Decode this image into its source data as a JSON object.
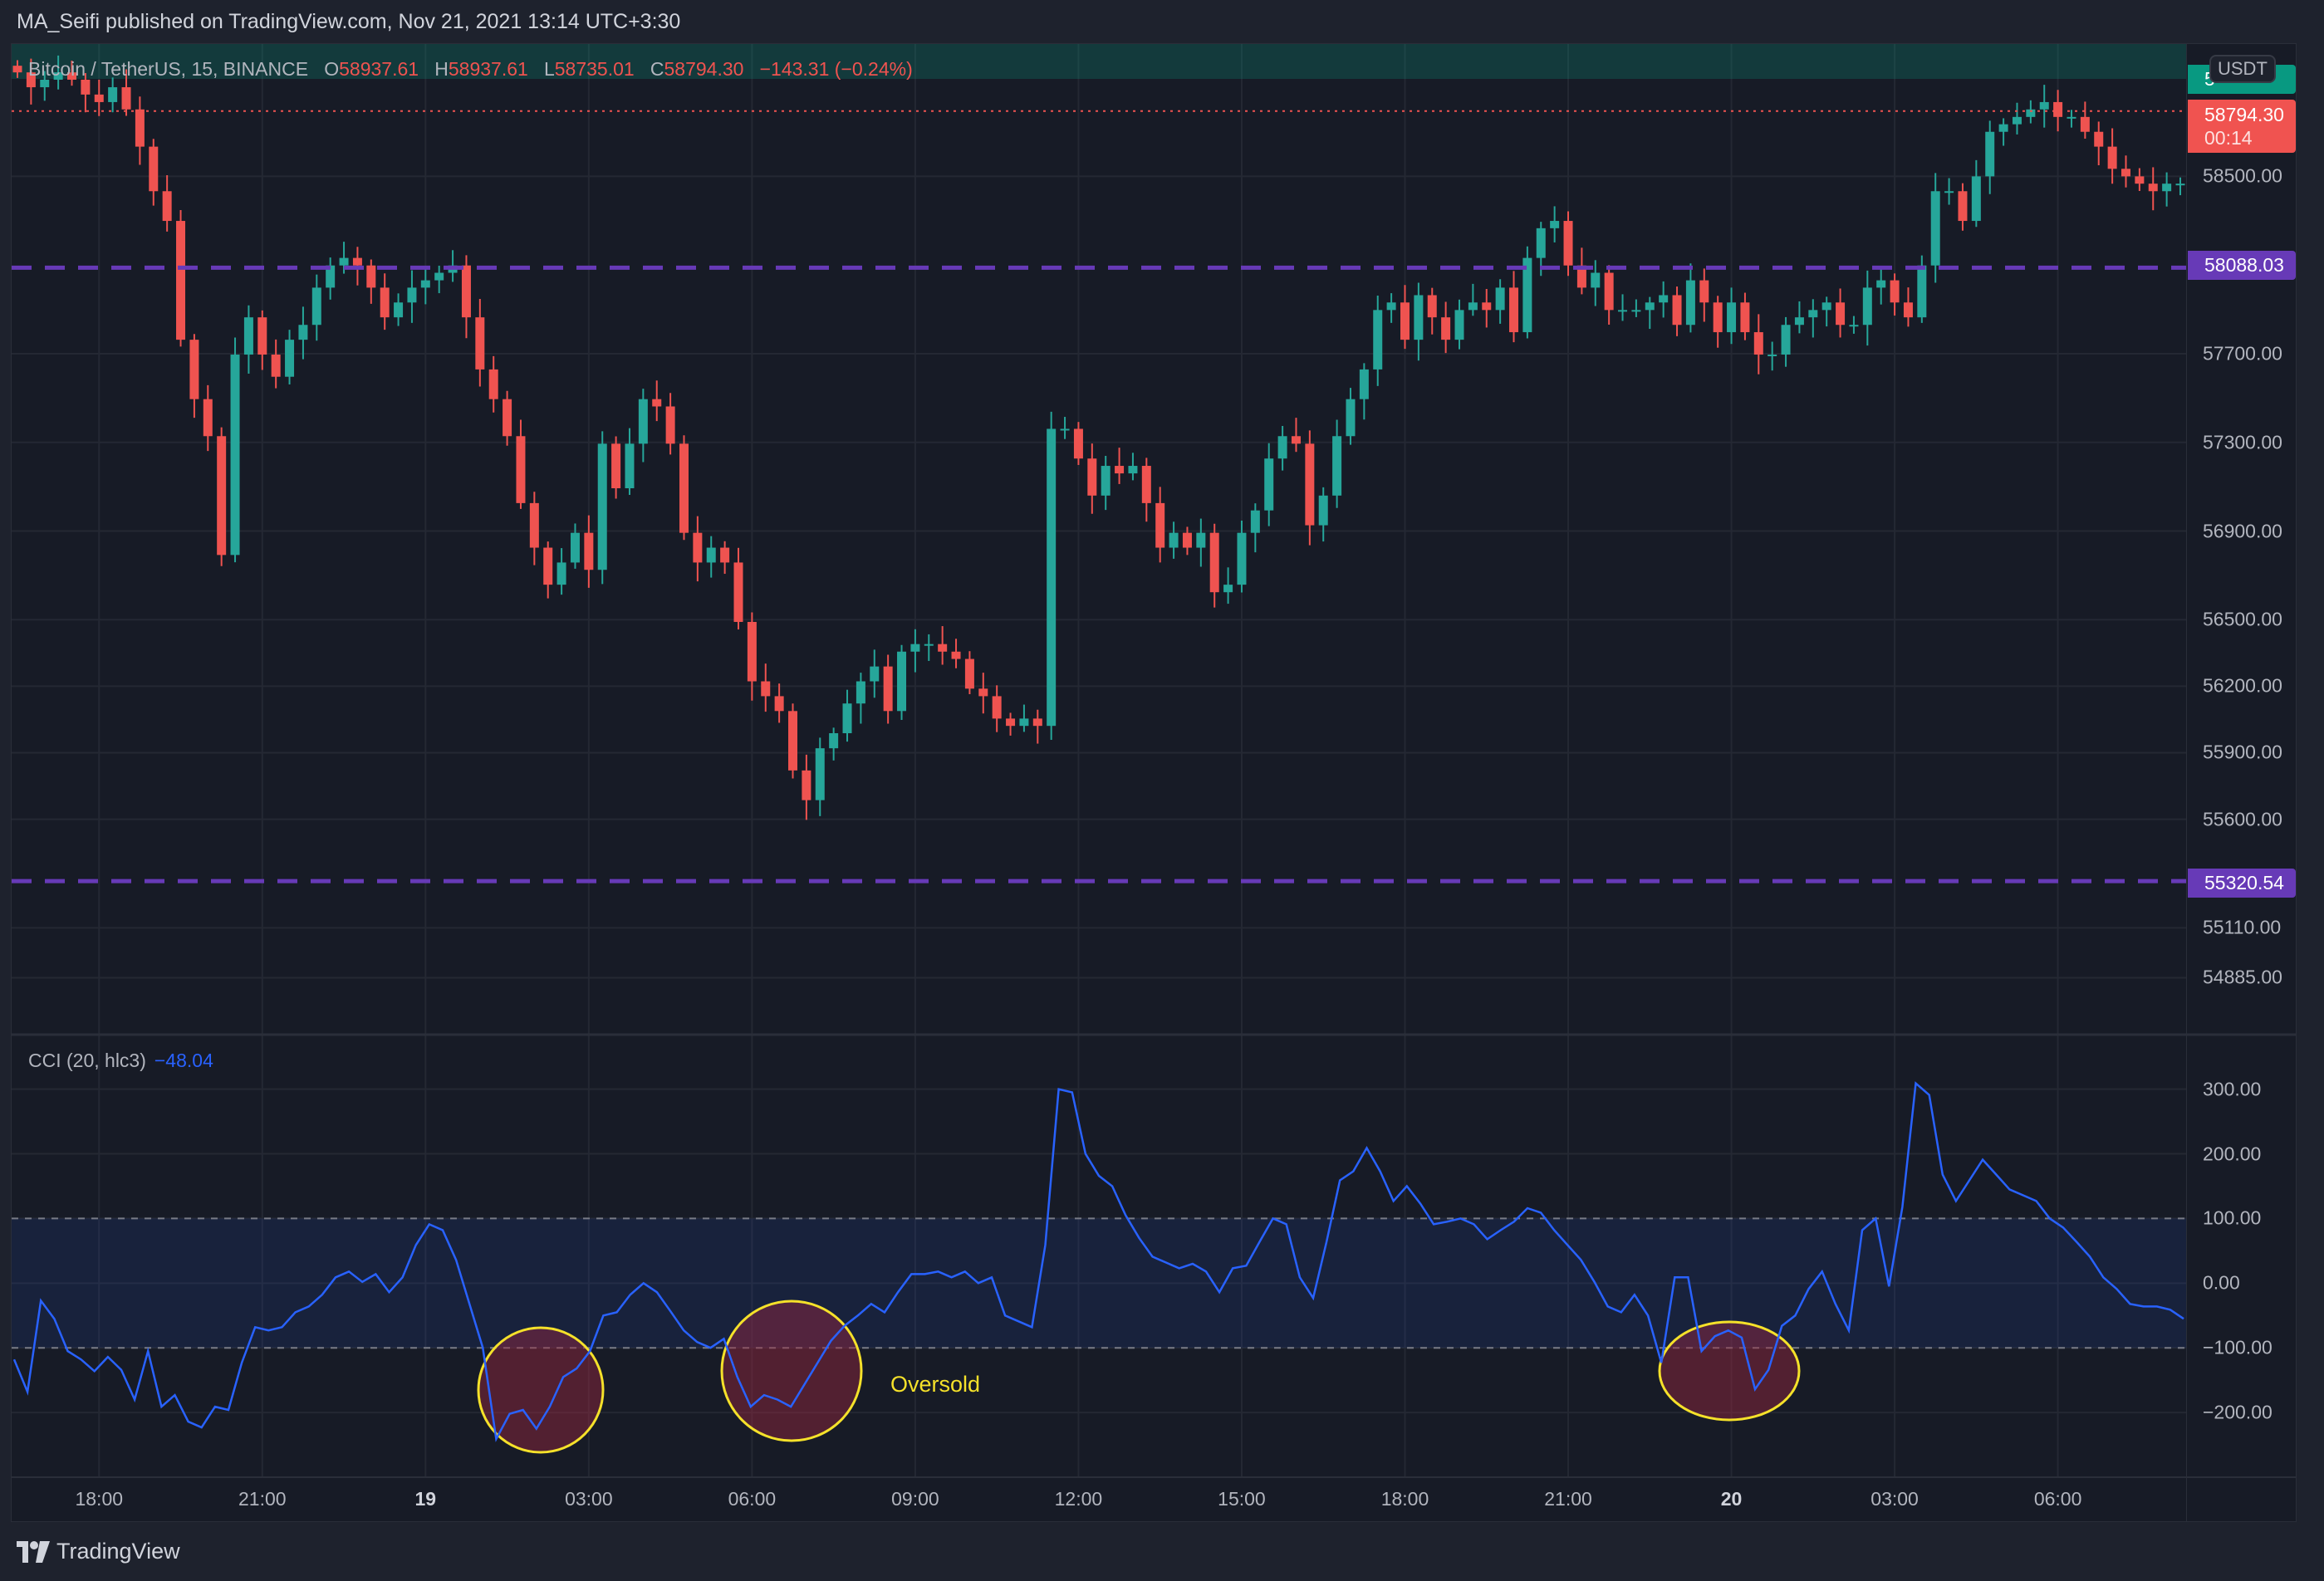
{
  "header": {
    "published": "MA_Seifi published on TradingView.com, Nov 21, 2021 13:14 UTC+3:30"
  },
  "legend": {
    "symbol": "Bitcoin / TetherUS, 15, BINANCE",
    "o_label": "O",
    "o": "58937.61",
    "h_label": "H",
    "h": "58937.61",
    "l_label": "L",
    "l": "58735.01",
    "c_label": "C",
    "c": "58794.30",
    "change": "−143.31 (−0.24%)"
  },
  "indicator": {
    "name": "CCI (20, hlc3)",
    "value": "−48.04"
  },
  "price_axis": {
    "currency": "USDT",
    "ticks": [
      "58500.00",
      "57700.00",
      "57300.00",
      "56900.00",
      "56500.00",
      "56200.00",
      "55900.00",
      "55600.00",
      "55110.00",
      "54885.00"
    ],
    "last_price": "58794.30",
    "countdown": "00:14",
    "hidden_tag": "5",
    "level_high": "58088.03",
    "level_low": "55320.54"
  },
  "cci_axis": {
    "ticks": [
      "300.00",
      "200.00",
      "100.00",
      "0.00",
      "−100.00",
      "−200.00"
    ]
  },
  "time_axis": [
    {
      "label": "18:00",
      "bar": 6,
      "bold": false
    },
    {
      "label": "21:00",
      "bar": 18,
      "bold": false
    },
    {
      "label": "19",
      "bar": 30,
      "bold": true
    },
    {
      "label": "03:00",
      "bar": 42,
      "bold": false
    },
    {
      "label": "06:00",
      "bar": 54,
      "bold": false
    },
    {
      "label": "09:00",
      "bar": 66,
      "bold": false
    },
    {
      "label": "12:00",
      "bar": 78,
      "bold": false
    },
    {
      "label": "15:00",
      "bar": 90,
      "bold": false
    },
    {
      "label": "18:00",
      "bar": 102,
      "bold": false
    },
    {
      "label": "21:00",
      "bar": 114,
      "bold": false
    },
    {
      "label": "20",
      "bar": 126,
      "bold": true
    },
    {
      "label": "03:00",
      "bar": 138,
      "bold": false
    },
    {
      "label": "06:00",
      "bar": 150,
      "bold": false
    }
  ],
  "annotation": {
    "text": "Oversold"
  },
  "footer": {
    "brand": "TradingView"
  },
  "colors": {
    "up": "#26a69a",
    "down": "#ef5350",
    "level": "#673ab7",
    "cci": "#2962ff",
    "highlight": "#f5e12a"
  },
  "chart_data": [
    {
      "type": "candlestick",
      "title": "Bitcoin / TetherUS, 15, BINANCE",
      "ylim": [
        54632,
        59097
      ],
      "levels": [
        58088.03,
        55320.54
      ],
      "last_price": 58794.3,
      "closes": [
        58969,
        58902,
        58936,
        58969,
        58936,
        58869,
        58835,
        58902,
        58802,
        58634,
        58433,
        58299,
        57763,
        57495,
        57328,
        56792,
        57696,
        57864,
        57696,
        57596,
        57763,
        57830,
        57998,
        58098,
        58132,
        58098,
        57998,
        57864,
        57931,
        57998,
        58031,
        58065,
        58098,
        57864,
        57629,
        57495,
        57328,
        57026,
        56825,
        56658,
        56758,
        56892,
        56725,
        57294,
        57093,
        57294,
        57495,
        57462,
        57294,
        56892,
        56758,
        56825,
        56758,
        56490,
        56222,
        56155,
        56088,
        55820,
        55686,
        55920,
        55988,
        56122,
        56222,
        56289,
        56088,
        56356,
        56390,
        56390,
        56356,
        56323,
        56189,
        56155,
        56054,
        56021,
        56054,
        56021,
        57361,
        57361,
        57227,
        57060,
        57194,
        57160,
        57194,
        57026,
        56825,
        56892,
        56825,
        56892,
        56624,
        56658,
        56892,
        56993,
        57227,
        57328,
        57294,
        56926,
        57060,
        57328,
        57495,
        57629,
        57897,
        57931,
        57763,
        57964,
        57864,
        57763,
        57897,
        57931,
        57897,
        57998,
        57797,
        58132,
        58266,
        58299,
        58098,
        57998,
        58065,
        57897,
        57897,
        57897,
        57931,
        57964,
        57830,
        58031,
        57931,
        57797,
        57931,
        57797,
        57696,
        57696,
        57830,
        57864,
        57897,
        57931,
        57830,
        57830,
        57998,
        58031,
        57931,
        57864,
        58098,
        58433,
        58433,
        58299,
        58500,
        58701,
        58735,
        58768,
        58802,
        58835,
        58768,
        58768,
        58701,
        58634,
        58534,
        58500,
        58467,
        58433,
        58467,
        58467
      ]
    },
    {
      "type": "line",
      "title": "CCI (20, hlc3)",
      "ylim": [
        -300,
        383
      ],
      "bands": [
        100,
        -100
      ],
      "values": [
        -118,
        -168,
        -27,
        -55,
        -105,
        -118,
        -136,
        -114,
        -134,
        -180,
        -105,
        -191,
        -173,
        -214,
        -223,
        -191,
        -196,
        -123,
        -68,
        -73,
        -68,
        -45,
        -36,
        -18,
        9,
        18,
        2,
        14,
        -14,
        9,
        59,
        91,
        82,
        36,
        -32,
        -100,
        -241,
        -202,
        -196,
        -225,
        -191,
        -145,
        -132,
        -105,
        -50,
        -45,
        -18,
        0,
        -14,
        -43,
        -73,
        -91,
        -100,
        -86,
        -145,
        -191,
        -173,
        -180,
        -191,
        -157,
        -123,
        -89,
        -66,
        -50,
        -32,
        -45,
        -14,
        14,
        14,
        18,
        9,
        18,
        0,
        9,
        -50,
        -59,
        -68,
        59,
        300,
        295,
        200,
        166,
        150,
        105,
        70,
        41,
        32,
        23,
        30,
        18,
        -14,
        23,
        27,
        64,
        100,
        91,
        9,
        -23,
        64,
        159,
        173,
        209,
        173,
        127,
        150,
        123,
        91,
        95,
        100,
        91,
        68,
        82,
        95,
        116,
        109,
        82,
        59,
        36,
        2,
        -36,
        -45,
        -18,
        -50,
        -123,
        9,
        9,
        -105,
        -82,
        -73,
        -84,
        -164,
        -134,
        -66,
        -50,
        -9,
        18,
        -32,
        -73,
        82,
        100,
        -5,
        118,
        309,
        291,
        168,
        127,
        159,
        191,
        168,
        145,
        136,
        127,
        100,
        86,
        64,
        41,
        9,
        -9,
        -32,
        -36,
        -36,
        -41,
        -55
      ],
      "circled_regions": [
        "Oversold"
      ]
    }
  ]
}
